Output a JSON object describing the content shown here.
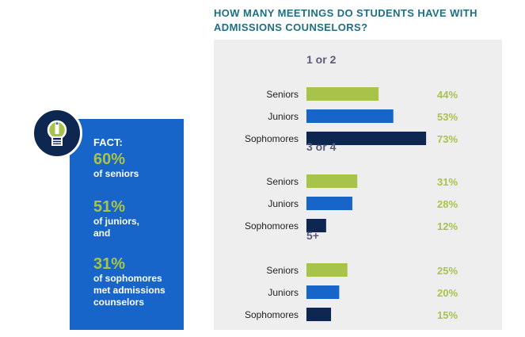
{
  "chart_data": {
    "type": "bar",
    "orientation": "horizontal",
    "title": "HOW MANY MEETINGS DO STUDENTS HAVE WITH ADMISSIONS COUNSELORS?",
    "categories": [
      "Seniors",
      "Juniors",
      "Sophomores"
    ],
    "groups": [
      {
        "label": "1 or 2",
        "values": [
          44,
          53,
          73
        ]
      },
      {
        "label": "3 or 4",
        "values": [
          31,
          28,
          12
        ]
      },
      {
        "label": "5+",
        "values": [
          25,
          20,
          15
        ]
      }
    ],
    "value_suffix": "%",
    "colors": {
      "Seniors": "#a8c34a",
      "Juniors": "#1765c8",
      "Sophomores": "#0d2750"
    },
    "value_label_color": "#a8c34a",
    "grid": false,
    "legend": "none"
  },
  "fact": {
    "title": "FACT:",
    "items": [
      {
        "pct": "60%",
        "text": "of seniors"
      },
      {
        "pct": "51%",
        "text": "of juniors, and"
      },
      {
        "pct": "31%",
        "text": "of sophomores met admissions counselors"
      }
    ]
  },
  "icons": {
    "fact_icon": "lightbulb-pencil-icon"
  }
}
